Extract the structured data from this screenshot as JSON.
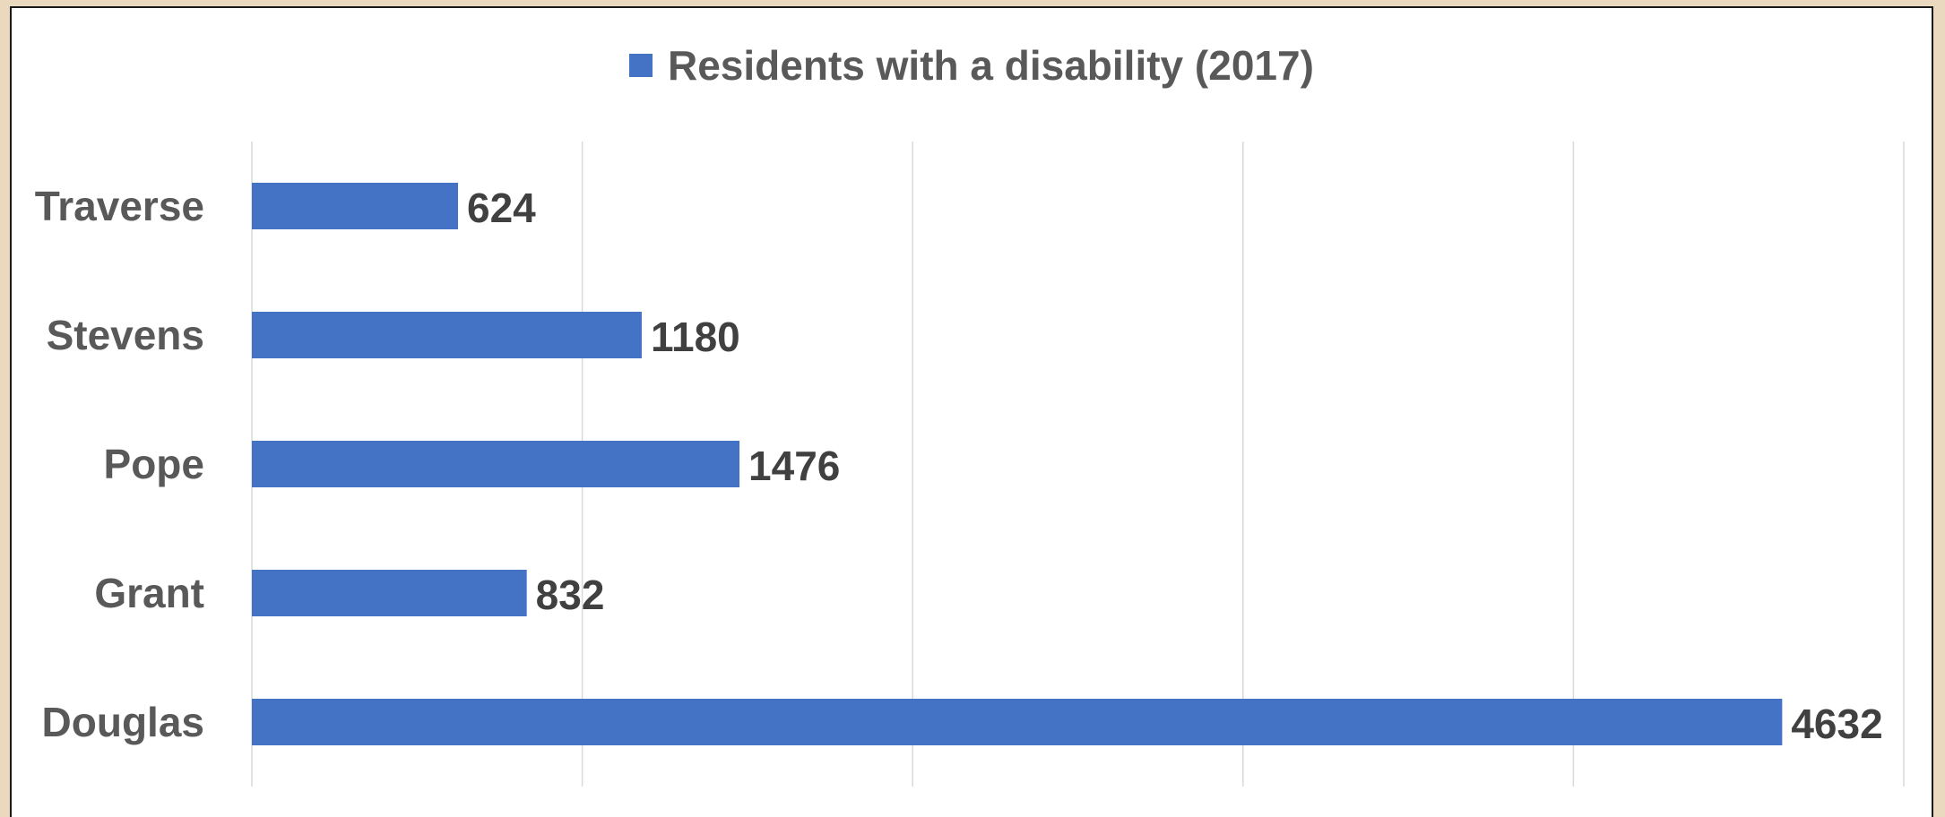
{
  "chart_data": {
    "type": "bar",
    "orientation": "horizontal",
    "categories": [
      "Traverse",
      "Stevens",
      "Pope",
      "Grant",
      "Douglas"
    ],
    "series": [
      {
        "name": "Residents with a disability (2017)",
        "values": [
          624,
          1180,
          1476,
          832,
          4632
        ]
      }
    ],
    "xlim": [
      0,
      5000
    ],
    "grid": true,
    "legend_position": "top",
    "data_labels": true,
    "colors": {
      "bar": "#4472c4"
    }
  }
}
